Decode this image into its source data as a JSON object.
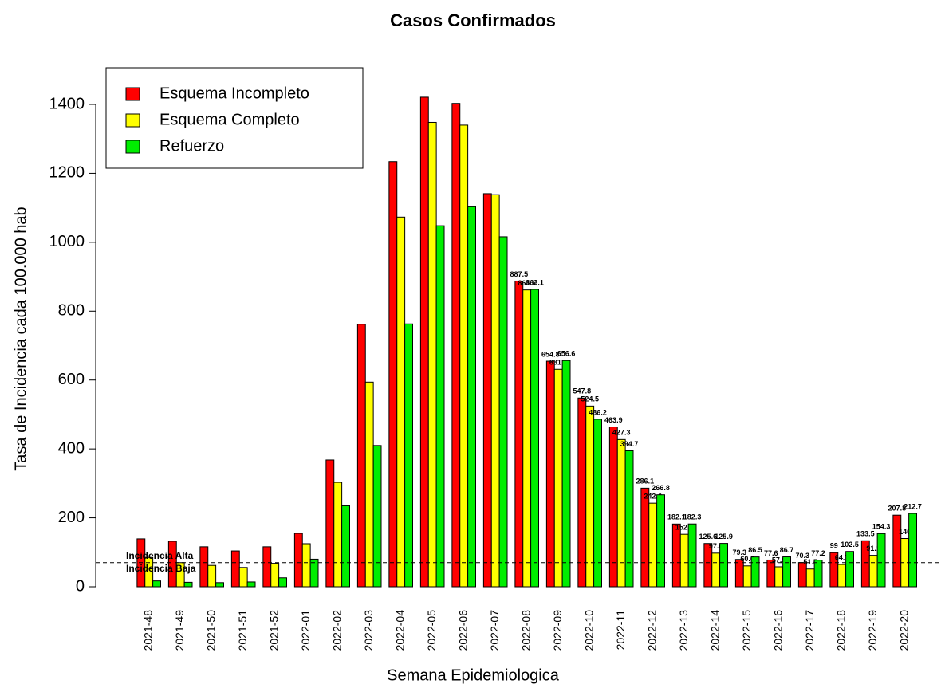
{
  "chart_data": {
    "type": "bar",
    "title": "Casos Confirmados",
    "xlabel": "Semana Epidemiologica",
    "ylabel": "Tasa de Incidencia cada 100.000 hab",
    "categories": [
      "2021-48",
      "2021-49",
      "2021-50",
      "2021-51",
      "2021-52",
      "2022-01",
      "2022-02",
      "2022-03",
      "2022-04",
      "2022-05",
      "2022-06",
      "2022-07",
      "2022-08",
      "2022-09",
      "2022-10",
      "2022-11",
      "2022-12",
      "2022-13",
      "2022-14",
      "2022-15",
      "2022-16",
      "2022-17",
      "2022-18",
      "2022-19",
      "2022-20"
    ],
    "series": [
      {
        "name": "Esquema Incompleto",
        "color": "#ff0000",
        "values": [
          139,
          132,
          116,
          104,
          116,
          155,
          368,
          762,
          1234,
          1421,
          1403,
          1141,
          887.5,
          654.8,
          547.8,
          463.9,
          286.1,
          182.1,
          125.6,
          79.3,
          77.6,
          70.3,
          99,
          133.5,
          207.8
        ],
        "value_labels": [
          null,
          null,
          null,
          null,
          null,
          null,
          null,
          null,
          null,
          null,
          null,
          null,
          "887.5",
          "654.8",
          "547.8",
          "463.9",
          "286.1",
          "182.1",
          "125.6",
          "79.3",
          "77.6",
          "70.3",
          "99",
          "133.5",
          "207.8"
        ]
      },
      {
        "name": "Esquema Completo",
        "color": "#ffff00",
        "values": [
          85,
          70,
          62,
          56,
          68,
          125,
          303,
          594,
          1073,
          1348,
          1340,
          1138,
          861.6,
          631.1,
          524.5,
          427.3,
          242.6,
          152.3,
          97.6,
          60.6,
          57.9,
          51.5,
          64.7,
          91.1,
          140
        ],
        "value_labels": [
          null,
          null,
          null,
          null,
          null,
          null,
          null,
          null,
          null,
          null,
          null,
          null,
          "861.6",
          "631.1",
          "524.5",
          "427.3",
          "242.6",
          "152.3",
          "97.6",
          "60.6",
          "57.9",
          "51.5",
          "64.7",
          "91.1",
          "140"
        ]
      },
      {
        "name": "Refuerzo",
        "color": "#00ee00",
        "values": [
          17,
          13,
          12,
          14,
          26,
          80,
          235,
          410,
          763,
          1048,
          1103,
          1016,
          863.1,
          656.6,
          486.2,
          394.7,
          266.8,
          182.3,
          125.9,
          86.5,
          86.7,
          77.2,
          102.5,
          154.3,
          212.7
        ],
        "value_labels": [
          null,
          null,
          null,
          null,
          null,
          null,
          null,
          null,
          null,
          null,
          null,
          null,
          "863.1",
          "656.6",
          "486.2",
          "394.7",
          "266.8",
          "182.3",
          "125.9",
          "86.5",
          "86.7",
          "77.2",
          "102.5",
          "154.3",
          "212.7"
        ]
      }
    ],
    "ylim": [
      0,
      1400
    ],
    "yticks": [
      0,
      200,
      400,
      600,
      800,
      1000,
      1200,
      1400
    ],
    "threshold": 70,
    "annotations": [
      "Incidencia Alta",
      "Incidencia Baja"
    ],
    "legend": "top-left",
    "grid": false
  }
}
